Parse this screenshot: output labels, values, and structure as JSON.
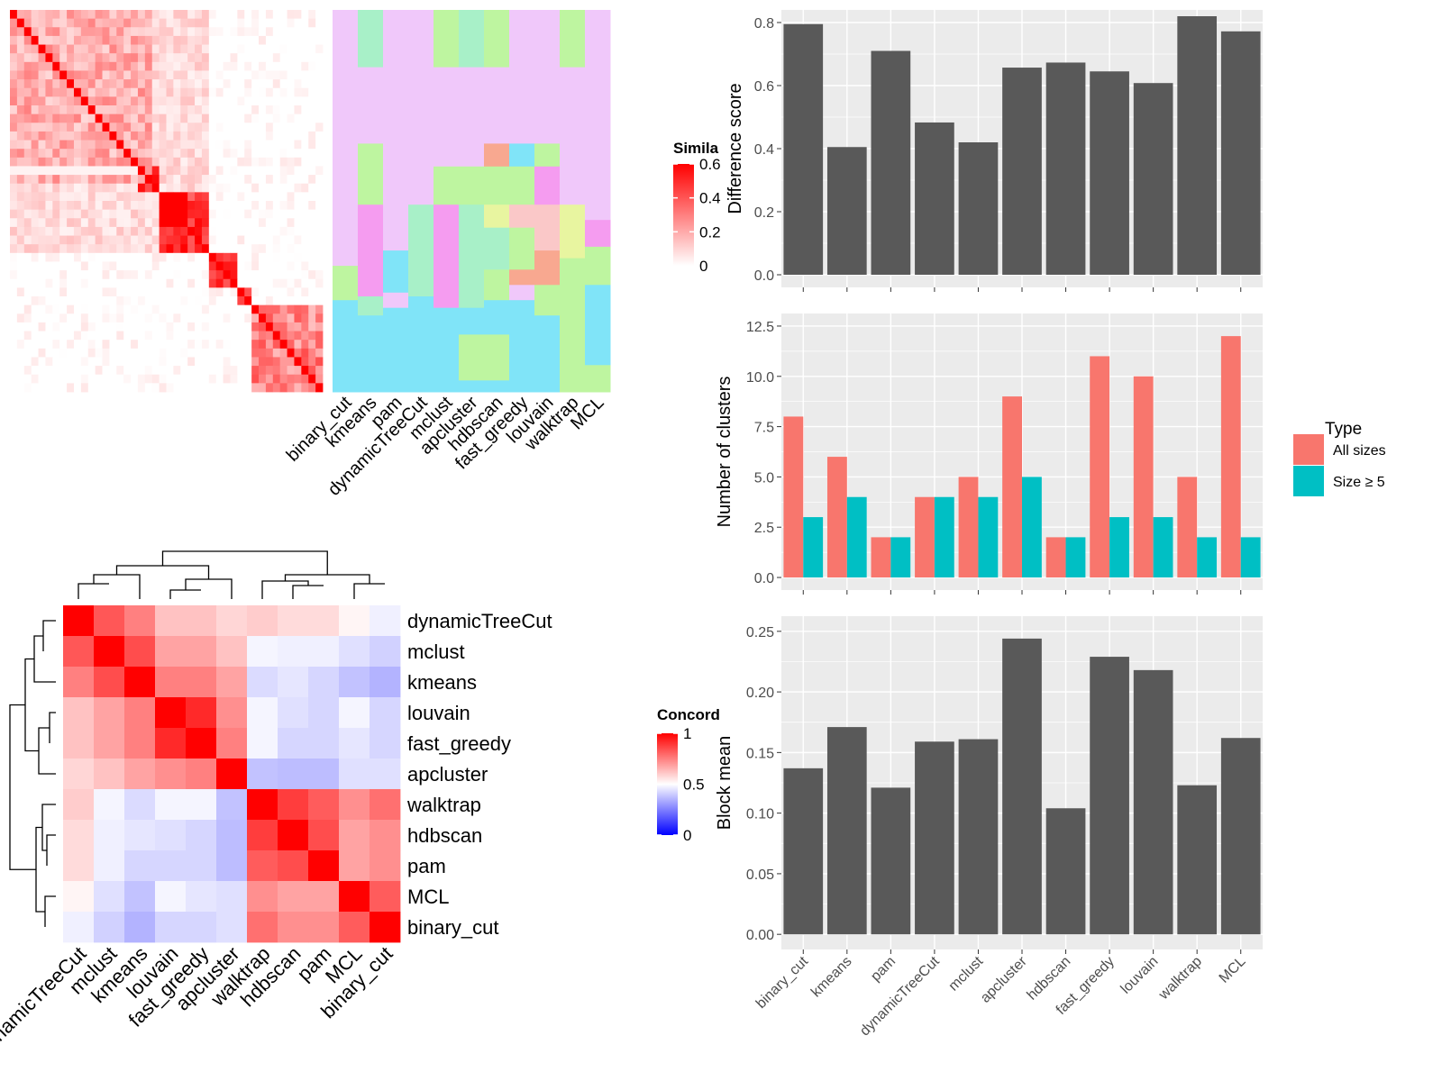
{
  "chart_data": [
    {
      "type": "heatmap",
      "legend_title": "Simila",
      "legend_ticks": [
        "0",
        "0.2",
        "0.4",
        "0.6"
      ],
      "x_labels": [
        "binary_cut",
        "kmeans",
        "pam",
        "dynamicTreeCut",
        "mclust",
        "apcluster",
        "hdbscan",
        "fast_greedy",
        "louvain",
        "walktrap",
        "MCL"
      ],
      "colors": [
        "#ffffff",
        "#ff0000"
      ]
    },
    {
      "type": "heatmap",
      "legend_title": "Concord",
      "legend_ticks": [
        "0",
        "0.5",
        "1"
      ],
      "colors": [
        "#0000ff",
        "#ffffff",
        "#ff0000"
      ],
      "labels": [
        "dynamicTreeCut",
        "mclust",
        "kmeans",
        "louvain",
        "fast_greedy",
        "apcluster",
        "walktrap",
        "hdbscan",
        "pam",
        "MCL",
        "binary_cut"
      ],
      "values": [
        [
          1.0,
          0.83,
          0.75,
          0.62,
          0.62,
          0.58,
          0.6,
          0.57,
          0.57,
          0.52,
          0.47
        ],
        [
          0.83,
          1.0,
          0.85,
          0.68,
          0.68,
          0.62,
          0.48,
          0.47,
          0.47,
          0.44,
          0.41
        ],
        [
          0.75,
          0.85,
          1.0,
          0.75,
          0.75,
          0.68,
          0.43,
          0.45,
          0.42,
          0.38,
          0.35
        ],
        [
          0.62,
          0.68,
          0.75,
          1.0,
          0.92,
          0.72,
          0.48,
          0.44,
          0.42,
          0.48,
          0.42
        ],
        [
          0.62,
          0.68,
          0.75,
          0.92,
          1.0,
          0.75,
          0.48,
          0.42,
          0.42,
          0.45,
          0.42
        ],
        [
          0.58,
          0.62,
          0.68,
          0.72,
          0.75,
          1.0,
          0.38,
          0.37,
          0.37,
          0.44,
          0.44
        ],
        [
          0.6,
          0.48,
          0.43,
          0.48,
          0.48,
          0.38,
          1.0,
          0.88,
          0.82,
          0.72,
          0.78
        ],
        [
          0.57,
          0.47,
          0.45,
          0.44,
          0.42,
          0.37,
          0.88,
          1.0,
          0.85,
          0.68,
          0.72
        ],
        [
          0.57,
          0.47,
          0.42,
          0.42,
          0.42,
          0.37,
          0.82,
          0.85,
          1.0,
          0.68,
          0.72
        ],
        [
          0.52,
          0.44,
          0.38,
          0.48,
          0.45,
          0.44,
          0.72,
          0.68,
          0.68,
          1.0,
          0.82
        ],
        [
          0.47,
          0.41,
          0.35,
          0.42,
          0.42,
          0.44,
          0.78,
          0.72,
          0.72,
          0.82,
          1.0
        ]
      ]
    },
    {
      "type": "bar",
      "ylabel": "Difference score",
      "ylim": [
        0,
        0.8
      ],
      "yticks": [
        "0.0",
        "0.2",
        "0.4",
        "0.6",
        "0.8"
      ],
      "categories": [
        "binary_cut",
        "kmeans",
        "pam",
        "dynamicTreeCut",
        "mclust",
        "apcluster",
        "hdbscan",
        "fast_greedy",
        "louvain",
        "walktrap",
        "MCL"
      ],
      "values": [
        0.795,
        0.405,
        0.71,
        0.483,
        0.42,
        0.657,
        0.673,
        0.645,
        0.608,
        0.82,
        0.772
      ],
      "grid": true
    },
    {
      "type": "bar",
      "ylabel": "Number of clusters",
      "ylim": [
        0,
        12.5
      ],
      "yticks": [
        "0.0",
        "2.5",
        "5.0",
        "7.5",
        "10.0",
        "12.5"
      ],
      "categories": [
        "binary_cut",
        "kmeans",
        "pam",
        "dynamicTreeCut",
        "mclust",
        "apcluster",
        "hdbscan",
        "fast_greedy",
        "louvain",
        "walktrap",
        "MCL"
      ],
      "series": [
        {
          "name": "All sizes",
          "color": "#f8766d",
          "values": [
            8,
            6,
            2,
            4,
            5,
            9,
            2,
            11,
            10,
            5,
            12
          ]
        },
        {
          "name": "Size ≥ 5",
          "color": "#00bfc4",
          "values": [
            3,
            4,
            2,
            4,
            4,
            5,
            2,
            3,
            3,
            2,
            2
          ]
        }
      ],
      "legend": {
        "title": "Type",
        "position": "right"
      },
      "grid": true
    },
    {
      "type": "bar",
      "ylabel": "Block mean",
      "ylim": [
        0,
        0.25
      ],
      "yticks": [
        "0.00",
        "0.05",
        "0.10",
        "0.15",
        "0.20",
        "0.25"
      ],
      "categories": [
        "binary_cut",
        "kmeans",
        "pam",
        "dynamicTreeCut",
        "mclust",
        "apcluster",
        "hdbscan",
        "fast_greedy",
        "louvain",
        "walktrap",
        "MCL"
      ],
      "values": [
        0.137,
        0.171,
        0.121,
        0.159,
        0.161,
        0.244,
        0.104,
        0.229,
        0.218,
        0.123,
        0.162
      ],
      "grid": true
    }
  ],
  "colors": {
    "panel_bg": "#ebebeb",
    "bar_dark": "#595959"
  }
}
